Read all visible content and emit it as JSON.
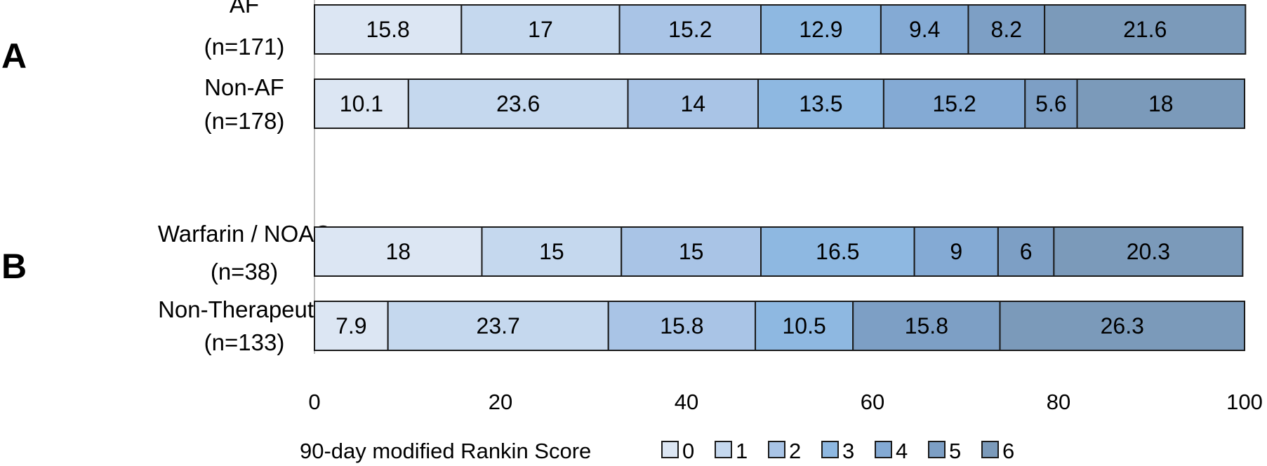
{
  "chart_data": {
    "type": "bar",
    "orientation": "horizontal",
    "stacked": true,
    "xlim": [
      0,
      100
    ],
    "xticks": [
      "0",
      "20",
      "40",
      "60",
      "80",
      "100"
    ],
    "grid": false,
    "legend": {
      "title": "90-day modified Rankin Score",
      "placement": "bottom",
      "labels": [
        "0",
        "1",
        "2",
        "3",
        "4",
        "5",
        "6"
      ]
    },
    "score_colors": [
      "#dce6f3",
      "#c5d8ee",
      "#a9c4e6",
      "#8eb8e1",
      "#84aad4",
      "#7d9fc5",
      "#7b9aba"
    ],
    "panels": [
      {
        "letter": "A",
        "bars": [
          {
            "label_line1": "AF",
            "label_line2": "(n=171)",
            "segments": [
              {
                "score": 0,
                "value": 15.8,
                "label": "15.8"
              },
              {
                "score": 1,
                "value": 17,
                "label": "17"
              },
              {
                "score": 2,
                "value": 15.2,
                "label": "15.2"
              },
              {
                "score": 3,
                "value": 12.9,
                "label": "12.9"
              },
              {
                "score": 4,
                "value": 9.4,
                "label": "9.4"
              },
              {
                "score": 5,
                "value": 8.2,
                "label": "8.2"
              },
              {
                "score": 6,
                "value": 21.6,
                "label": "21.6"
              }
            ]
          },
          {
            "label_line1": "Non-AF",
            "label_line2": "(n=178)",
            "segments": [
              {
                "score": 0,
                "value": 10.1,
                "label": "10.1"
              },
              {
                "score": 1,
                "value": 23.6,
                "label": "23.6"
              },
              {
                "score": 2,
                "value": 14,
                "label": "14"
              },
              {
                "score": 3,
                "value": 13.5,
                "label": "13.5"
              },
              {
                "score": 4,
                "value": 15.2,
                "label": "15.2"
              },
              {
                "score": 5,
                "value": 5.6,
                "label": "5.6"
              },
              {
                "score": 6,
                "value": 18,
                "label": "18"
              }
            ]
          }
        ]
      },
      {
        "letter": "B",
        "bars": [
          {
            "label_line1": "Warfarin / NOAC",
            "label_line2": "(n=38)",
            "segments": [
              {
                "score": 0,
                "value": 18,
                "label": "18"
              },
              {
                "score": 1,
                "value": 15,
                "label": "15"
              },
              {
                "score": 2,
                "value": 15,
                "label": "15"
              },
              {
                "score": 3,
                "value": 16.5,
                "label": "16.5"
              },
              {
                "score": 4,
                "value": 9,
                "label": "9"
              },
              {
                "score": 5,
                "value": 6,
                "label": "6"
              },
              {
                "score": 6,
                "value": 20.3,
                "label": "20.3"
              }
            ]
          },
          {
            "label_line1": "Non-Therapeutic",
            "label_line2": "(n=133)",
            "segments": [
              {
                "score": 0,
                "value": 7.9,
                "label": "7.9"
              },
              {
                "score": 1,
                "value": 23.7,
                "label": "23.7"
              },
              {
                "score": 2,
                "value": 15.8,
                "label": "15.8"
              },
              {
                "score": 3,
                "value": 10.5,
                "label": "10.5"
              },
              {
                "score": 5,
                "value": 15.8,
                "label": "15.8"
              },
              {
                "score": 6,
                "value": 26.3,
                "label": "26.3"
              }
            ]
          }
        ]
      }
    ]
  }
}
